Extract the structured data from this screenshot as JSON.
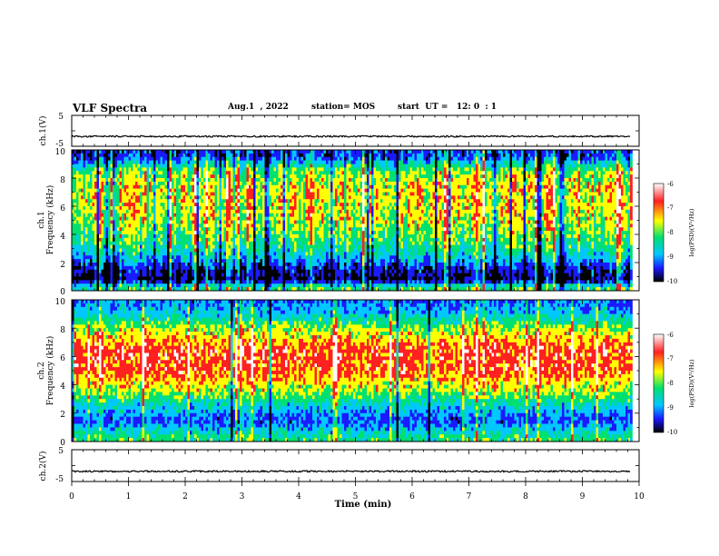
{
  "header": {
    "title": "VLF Spectra",
    "date": "Aug.1  , 2022",
    "station": "station= MOS",
    "start_ut": "start  UT =   12: 0  : 1"
  },
  "x_axis": {
    "label": "Time  (min)",
    "ticks": [
      "0",
      "1",
      "2",
      "3",
      "4",
      "5",
      "6",
      "7",
      "8",
      "9",
      "10"
    ]
  },
  "colorbar": {
    "label": "log(PSD)(V²/Hz)",
    "ticks": [
      "-6",
      "-7",
      "-8",
      "-9",
      "-10"
    ]
  },
  "panels": {
    "ch1_wave": {
      "ylabel": "ch.1(V)",
      "ticks": [
        "5",
        "-5"
      ]
    },
    "ch1_spec": {
      "ylabel_top": "ch.1",
      "ylabel_bottom": "Frequency  (kHz)",
      "ticks": [
        "10",
        "8",
        "6",
        "4",
        "2",
        "0"
      ]
    },
    "ch2_spec": {
      "ylabel_top": "ch.2",
      "ylabel_bottom": "Frequency  (kHz)",
      "ticks": [
        "10",
        "8",
        "6",
        "4",
        "2",
        "0"
      ]
    },
    "ch2_wave": {
      "ylabel": "ch.2(V)",
      "ticks": [
        "5",
        "-5"
      ]
    }
  },
  "colors": {
    "colormap": [
      "#000000",
      "#1a1aff",
      "#00c8ff",
      "#00e070",
      "#ffff00",
      "#ff2020",
      "#ffffff"
    ]
  },
  "chart_data": [
    {
      "type": "line",
      "name_label": "ch.1(V)",
      "xlabel": "",
      "ylabel": "ch.1(V)",
      "xlim": [
        0,
        10
      ],
      "ylim": [
        -5,
        5
      ],
      "x": [
        0,
        1,
        2,
        3,
        4,
        5,
        6,
        7,
        8,
        9,
        9.85
      ],
      "y": [
        -1.8,
        -1.8,
        -1.8,
        -1.8,
        -1.8,
        -1.8,
        -1.8,
        -1.8,
        -1.8,
        -1.8,
        -1.8
      ]
    },
    {
      "type": "heatmap",
      "ylabel": "ch.1 Frequency (kHz)",
      "xlim": [
        0,
        9.85
      ],
      "ylim": [
        0,
        10
      ],
      "colorbar_range": [
        -10,
        -6
      ],
      "band_profile": [
        {
          "freq_khz": 0.25,
          "log_psd": -8.0
        },
        {
          "freq_khz": 0.75,
          "log_psd": -9.9
        },
        {
          "freq_khz": 1.5,
          "log_psd": -9.6
        },
        {
          "freq_khz": 2.5,
          "log_psd": -8.5
        },
        {
          "freq_khz": 3.5,
          "log_psd": -8.0
        },
        {
          "freq_khz": 5.0,
          "log_psd": -7.5
        },
        {
          "freq_khz": 7.0,
          "log_psd": -7.3
        },
        {
          "freq_khz": 8.5,
          "log_psd": -7.7
        },
        {
          "freq_khz": 9.5,
          "log_psd": -9.3
        }
      ]
    },
    {
      "type": "heatmap",
      "ylabel": "ch.2 Frequency (kHz)",
      "xlim": [
        0,
        9.85
      ],
      "ylim": [
        0,
        10
      ],
      "colorbar_range": [
        -10,
        -6
      ],
      "band_profile": [
        {
          "freq_khz": 0.25,
          "log_psd": -8.0
        },
        {
          "freq_khz": 0.75,
          "log_psd": -8.5
        },
        {
          "freq_khz": 1.5,
          "log_psd": -9.2
        },
        {
          "freq_khz": 2.5,
          "log_psd": -8.5
        },
        {
          "freq_khz": 3.5,
          "log_psd": -7.6
        },
        {
          "freq_khz": 5.0,
          "log_psd": -6.8
        },
        {
          "freq_khz": 6.5,
          "log_psd": -6.7
        },
        {
          "freq_khz": 8.0,
          "log_psd": -7.6
        },
        {
          "freq_khz": 9.0,
          "log_psd": -8.6
        },
        {
          "freq_khz": 9.8,
          "log_psd": -9.0
        }
      ]
    },
    {
      "type": "line",
      "ylabel": "ch.2(V)",
      "xlabel": "Time  (min)",
      "xlim": [
        0,
        10
      ],
      "ylim": [
        -5,
        5
      ],
      "x": [
        0,
        1,
        2,
        3,
        4,
        5,
        6,
        7,
        8,
        9,
        9.85
      ],
      "y": [
        -1.8,
        -1.8,
        -1.8,
        -1.8,
        -1.8,
        -1.8,
        -1.8,
        -1.8,
        -1.8,
        -1.8,
        -1.8
      ]
    }
  ]
}
